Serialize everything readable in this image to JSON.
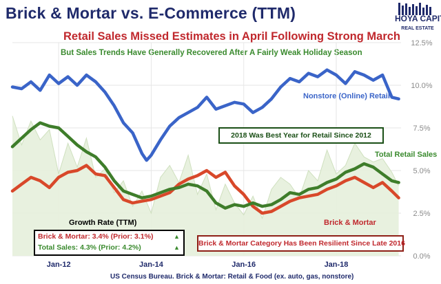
{
  "title": "Brick & Mortar vs. E-Commerce (TTM)",
  "subtitle": "Retail Sales Missed Estimates in April Following Strong March",
  "subtitle2": "But Sales Trends Have Generally Recovered After A Fairly Weak Holiday Season",
  "logo": {
    "line1": "HOYA CAPITAL",
    "line2": "REAL ESTATE",
    "color": "#1f2a6b"
  },
  "source": "US Census Bureau. Brick & Mortar: Retail & Food (ex. auto, gas, nonstore)",
  "annotations": {
    "best_year": "2018 Was Best Year for Retail Since 2012",
    "resilient": "Brick & Mortar Category Has Been Resilient Since Late 2016"
  },
  "growth": {
    "title": "Growth Rate (TTM)",
    "brick": "Brick & Mortar: 3.4% (Prior: 3.1%)",
    "total": "Total Sales: 4.3% (Prior: 4.2%)",
    "up_symbol": "▲"
  },
  "colors": {
    "nonstore": "#3a64c8",
    "total": "#3e7d2a",
    "brick": "#d8482a",
    "area": "#e6efdc",
    "area_line": "#cfe0bf",
    "grid": "#e6e6e6"
  },
  "chart_data": {
    "type": "line",
    "x_ticks": [
      "Jan-12",
      "Jan-14",
      "Jan-16",
      "Jan-18"
    ],
    "x_tick_dates": [
      2012.0,
      2014.0,
      2016.0,
      2018.0
    ],
    "xlim": [
      2011.0,
      2019.4
    ],
    "ylim": [
      0,
      12.5
    ],
    "y_ticks": [
      "0.0%",
      "2.5%",
      "5.0%",
      "7.5%",
      "10.0%",
      "12.5%"
    ],
    "y_tick_values": [
      0,
      2.5,
      5.0,
      7.5,
      10.0,
      12.5
    ],
    "y_axis_side": "right",
    "grid": true,
    "series": [
      {
        "name": "Nonstore (Online) Retail",
        "key": "nonstore",
        "x": [
          2011.0,
          2011.2,
          2011.4,
          2011.6,
          2011.8,
          2012.0,
          2012.2,
          2012.4,
          2012.6,
          2012.8,
          2013.0,
          2013.2,
          2013.4,
          2013.6,
          2013.8,
          2013.9,
          2014.0,
          2014.2,
          2014.4,
          2014.6,
          2014.8,
          2015.0,
          2015.2,
          2015.4,
          2015.6,
          2015.8,
          2016.0,
          2016.2,
          2016.4,
          2016.6,
          2016.8,
          2017.0,
          2017.2,
          2017.4,
          2017.6,
          2017.8,
          2018.0,
          2018.2,
          2018.4,
          2018.6,
          2018.8,
          2019.0,
          2019.2,
          2019.35
        ],
        "values": [
          9.9,
          9.8,
          10.2,
          9.7,
          10.6,
          10.1,
          10.5,
          10.0,
          10.6,
          10.2,
          9.6,
          8.8,
          7.8,
          7.2,
          6.0,
          5.6,
          5.9,
          6.8,
          7.6,
          8.1,
          8.4,
          8.7,
          9.3,
          8.6,
          8.8,
          9.0,
          8.9,
          8.4,
          8.7,
          9.2,
          9.9,
          10.4,
          10.2,
          10.7,
          10.5,
          10.9,
          10.6,
          10.1,
          10.8,
          10.6,
          10.3,
          10.6,
          9.3,
          9.2
        ]
      },
      {
        "name": "Total Retail Sales",
        "key": "total",
        "x": [
          2011.0,
          2011.2,
          2011.4,
          2011.6,
          2011.8,
          2012.0,
          2012.2,
          2012.4,
          2012.6,
          2012.8,
          2013.0,
          2013.2,
          2013.4,
          2013.6,
          2013.8,
          2014.0,
          2014.2,
          2014.4,
          2014.6,
          2014.8,
          2015.0,
          2015.2,
          2015.4,
          2015.6,
          2015.8,
          2016.0,
          2016.2,
          2016.4,
          2016.6,
          2016.8,
          2017.0,
          2017.2,
          2017.4,
          2017.6,
          2017.8,
          2018.0,
          2018.2,
          2018.4,
          2018.6,
          2018.8,
          2019.0,
          2019.2,
          2019.35
        ],
        "values": [
          6.4,
          6.9,
          7.4,
          7.8,
          7.6,
          7.5,
          7.0,
          6.5,
          6.1,
          5.8,
          5.2,
          4.4,
          3.8,
          3.6,
          3.4,
          3.5,
          3.7,
          3.9,
          4.0,
          4.2,
          4.1,
          3.8,
          3.1,
          2.8,
          3.0,
          2.9,
          3.1,
          2.9,
          3.0,
          3.3,
          3.7,
          3.6,
          3.9,
          4.0,
          4.3,
          4.5,
          4.9,
          5.1,
          5.4,
          5.2,
          4.8,
          4.4,
          4.3
        ]
      },
      {
        "name": "Brick & Mortar",
        "key": "brick",
        "x": [
          2011.0,
          2011.2,
          2011.4,
          2011.6,
          2011.8,
          2012.0,
          2012.2,
          2012.4,
          2012.6,
          2012.8,
          2013.0,
          2013.2,
          2013.4,
          2013.6,
          2013.8,
          2014.0,
          2014.2,
          2014.4,
          2014.6,
          2014.8,
          2015.0,
          2015.2,
          2015.4,
          2015.6,
          2015.8,
          2016.0,
          2016.2,
          2016.4,
          2016.6,
          2016.8,
          2017.0,
          2017.2,
          2017.4,
          2017.6,
          2017.8,
          2018.0,
          2018.2,
          2018.4,
          2018.6,
          2018.8,
          2019.0,
          2019.2,
          2019.35
        ],
        "values": [
          3.8,
          4.2,
          4.6,
          4.4,
          4.0,
          4.6,
          4.9,
          5.0,
          5.3,
          4.8,
          4.7,
          4.0,
          3.3,
          3.1,
          3.2,
          3.3,
          3.5,
          3.7,
          4.2,
          4.5,
          4.7,
          5.0,
          4.6,
          4.9,
          4.1,
          3.6,
          2.9,
          2.5,
          2.6,
          2.9,
          3.2,
          3.4,
          3.5,
          3.6,
          3.9,
          4.1,
          4.4,
          4.6,
          4.3,
          4.0,
          4.3,
          3.8,
          3.4
        ]
      },
      {
        "name": "",
        "key": "area",
        "x": [
          2011.0,
          2011.2,
          2011.4,
          2011.6,
          2011.8,
          2012.0,
          2012.2,
          2012.4,
          2012.6,
          2012.8,
          2013.0,
          2013.2,
          2013.4,
          2013.6,
          2013.8,
          2014.0,
          2014.2,
          2014.4,
          2014.6,
          2014.8,
          2015.0,
          2015.2,
          2015.4,
          2015.6,
          2015.8,
          2016.0,
          2016.2,
          2016.4,
          2016.6,
          2016.8,
          2017.0,
          2017.2,
          2017.4,
          2017.6,
          2017.8,
          2018.0,
          2018.2,
          2018.4,
          2018.6,
          2018.8,
          2019.0,
          2019.2,
          2019.35
        ],
        "values": [
          8.2,
          6.5,
          7.9,
          6.8,
          7.4,
          4.8,
          6.6,
          5.2,
          6.9,
          4.6,
          5.1,
          3.7,
          4.4,
          2.9,
          3.8,
          2.5,
          4.6,
          5.3,
          4.3,
          5.9,
          3.6,
          4.8,
          2.7,
          4.2,
          3.1,
          2.4,
          3.5,
          2.2,
          3.9,
          4.6,
          4.2,
          3.4,
          5.0,
          4.4,
          6.2,
          4.8,
          5.3,
          6.6,
          5.8,
          5.5,
          5.7,
          4.9,
          4.1
        ]
      }
    ],
    "series_labels": [
      {
        "key": "nonstore",
        "text": "Nonstore (Online) Retail"
      },
      {
        "key": "total",
        "text": "Total Retail Sales"
      },
      {
        "key": "brick",
        "text": "Brick & Mortar"
      }
    ]
  }
}
